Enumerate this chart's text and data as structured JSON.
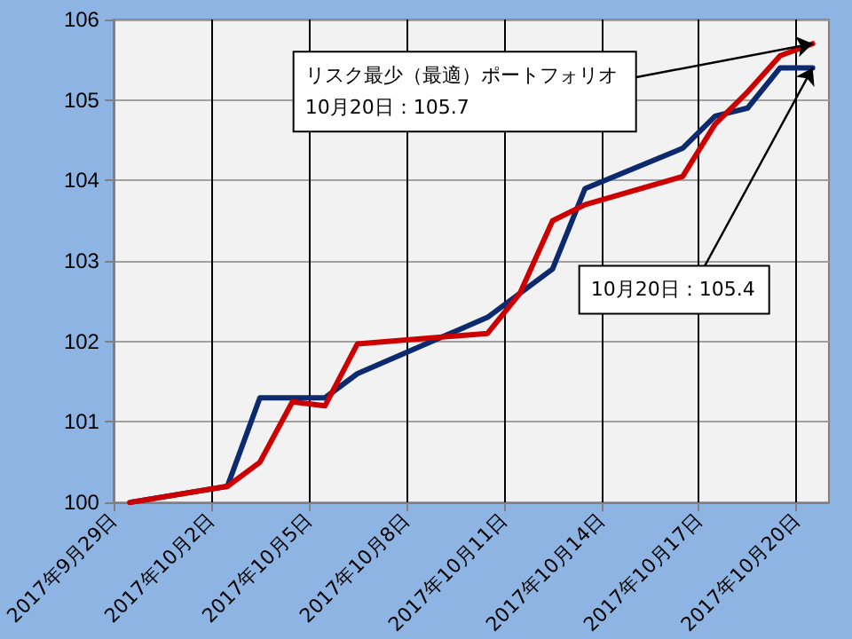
{
  "chart_data": {
    "type": "line",
    "x": [
      "2017-09-29T12:00",
      "2017-10-02T12:00",
      "2017-10-03T12:00",
      "2017-10-04T12:00",
      "2017-10-05T12:00",
      "2017-10-06T12:00",
      "2017-10-10T12:00",
      "2017-10-11T12:00",
      "2017-10-12T12:00",
      "2017-10-13T12:00",
      "2017-10-16T12:00",
      "2017-10-17T12:00",
      "2017-10-18T12:00",
      "2017-10-19T12:00",
      "2017-10-20T12:00"
    ],
    "series": [
      {
        "color": "#0d2a6e",
        "values": [
          100,
          100.2,
          101.3,
          101.3,
          101.3,
          101.6,
          102.3,
          102.6,
          102.9,
          103.9,
          104.4,
          104.8,
          104.9,
          105.4,
          105.4
        ]
      },
      {
        "color": "#cc0000",
        "values": [
          100,
          100.2,
          100.5,
          101.25,
          101.2,
          101.97,
          102.1,
          102.6,
          103.5,
          103.7,
          104.05,
          104.7,
          105.1,
          105.55,
          105.7
        ]
      }
    ],
    "xlim": [
      "2017-09-29",
      "2017-10-21"
    ],
    "xticks": [
      {
        "value": "2017-09-29",
        "label": "2017年9月29日"
      },
      {
        "value": "2017-10-02",
        "label": "2017年10月2日"
      },
      {
        "value": "2017-10-05",
        "label": "2017年10月5日"
      },
      {
        "value": "2017-10-08",
        "label": "2017年10月8日"
      },
      {
        "value": "2017-10-11",
        "label": "2017年10月11日"
      },
      {
        "value": "2017-10-14",
        "label": "2017年10月14日"
      },
      {
        "value": "2017-10-17",
        "label": "2017年10月17日"
      },
      {
        "value": "2017-10-20",
        "label": "2017年10月20日"
      }
    ],
    "ylim": [
      100,
      106
    ],
    "yticks": [
      100,
      101,
      102,
      103,
      104,
      105,
      106
    ],
    "grid": true,
    "marker": "none",
    "line_style": "solid",
    "annotations": [
      {
        "text": "リスク最少（最適）ポートフォリオ\n10月20日：105.7",
        "x": "2017-10-20T12:00",
        "y": 105.7
      },
      {
        "text": "10月20日：105.4",
        "x": "2017-10-20T12:00",
        "y": 105.4
      }
    ]
  }
}
